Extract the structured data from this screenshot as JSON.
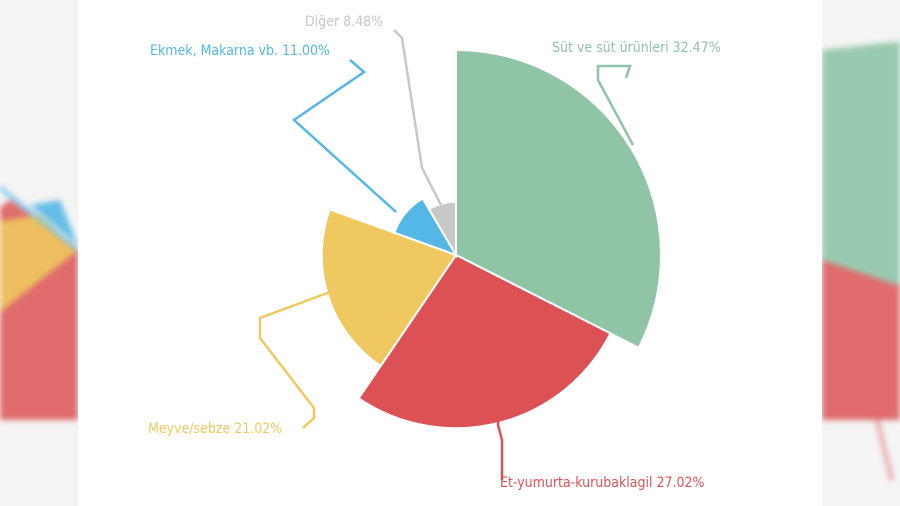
{
  "chart_data": {
    "type": "pie",
    "title": "",
    "slices": [
      {
        "label": "Süt ve süt ürünleri 32.47%",
        "value": 32.47,
        "color": "#8fc4a7",
        "radius_factor": 1.0
      },
      {
        "label": "Et-yumurta-kurubaklagil 27.02%",
        "value": 27.02,
        "color": "#dc5254",
        "radius_factor": 0.845
      },
      {
        "label": "Meyve/sebze 21.02%",
        "value": 21.02,
        "color": "#efc95f",
        "radius_factor": 0.655
      },
      {
        "label": "Ekmek, Makarna vb. 11.00%",
        "value": 11.0,
        "color": "#55b7e5",
        "radius_factor": 0.32
      },
      {
        "label": "Diğer 8.48%",
        "value": 8.48,
        "color": "#c8c8c8",
        "radius_factor": 0.26
      }
    ],
    "legend": "none"
  }
}
